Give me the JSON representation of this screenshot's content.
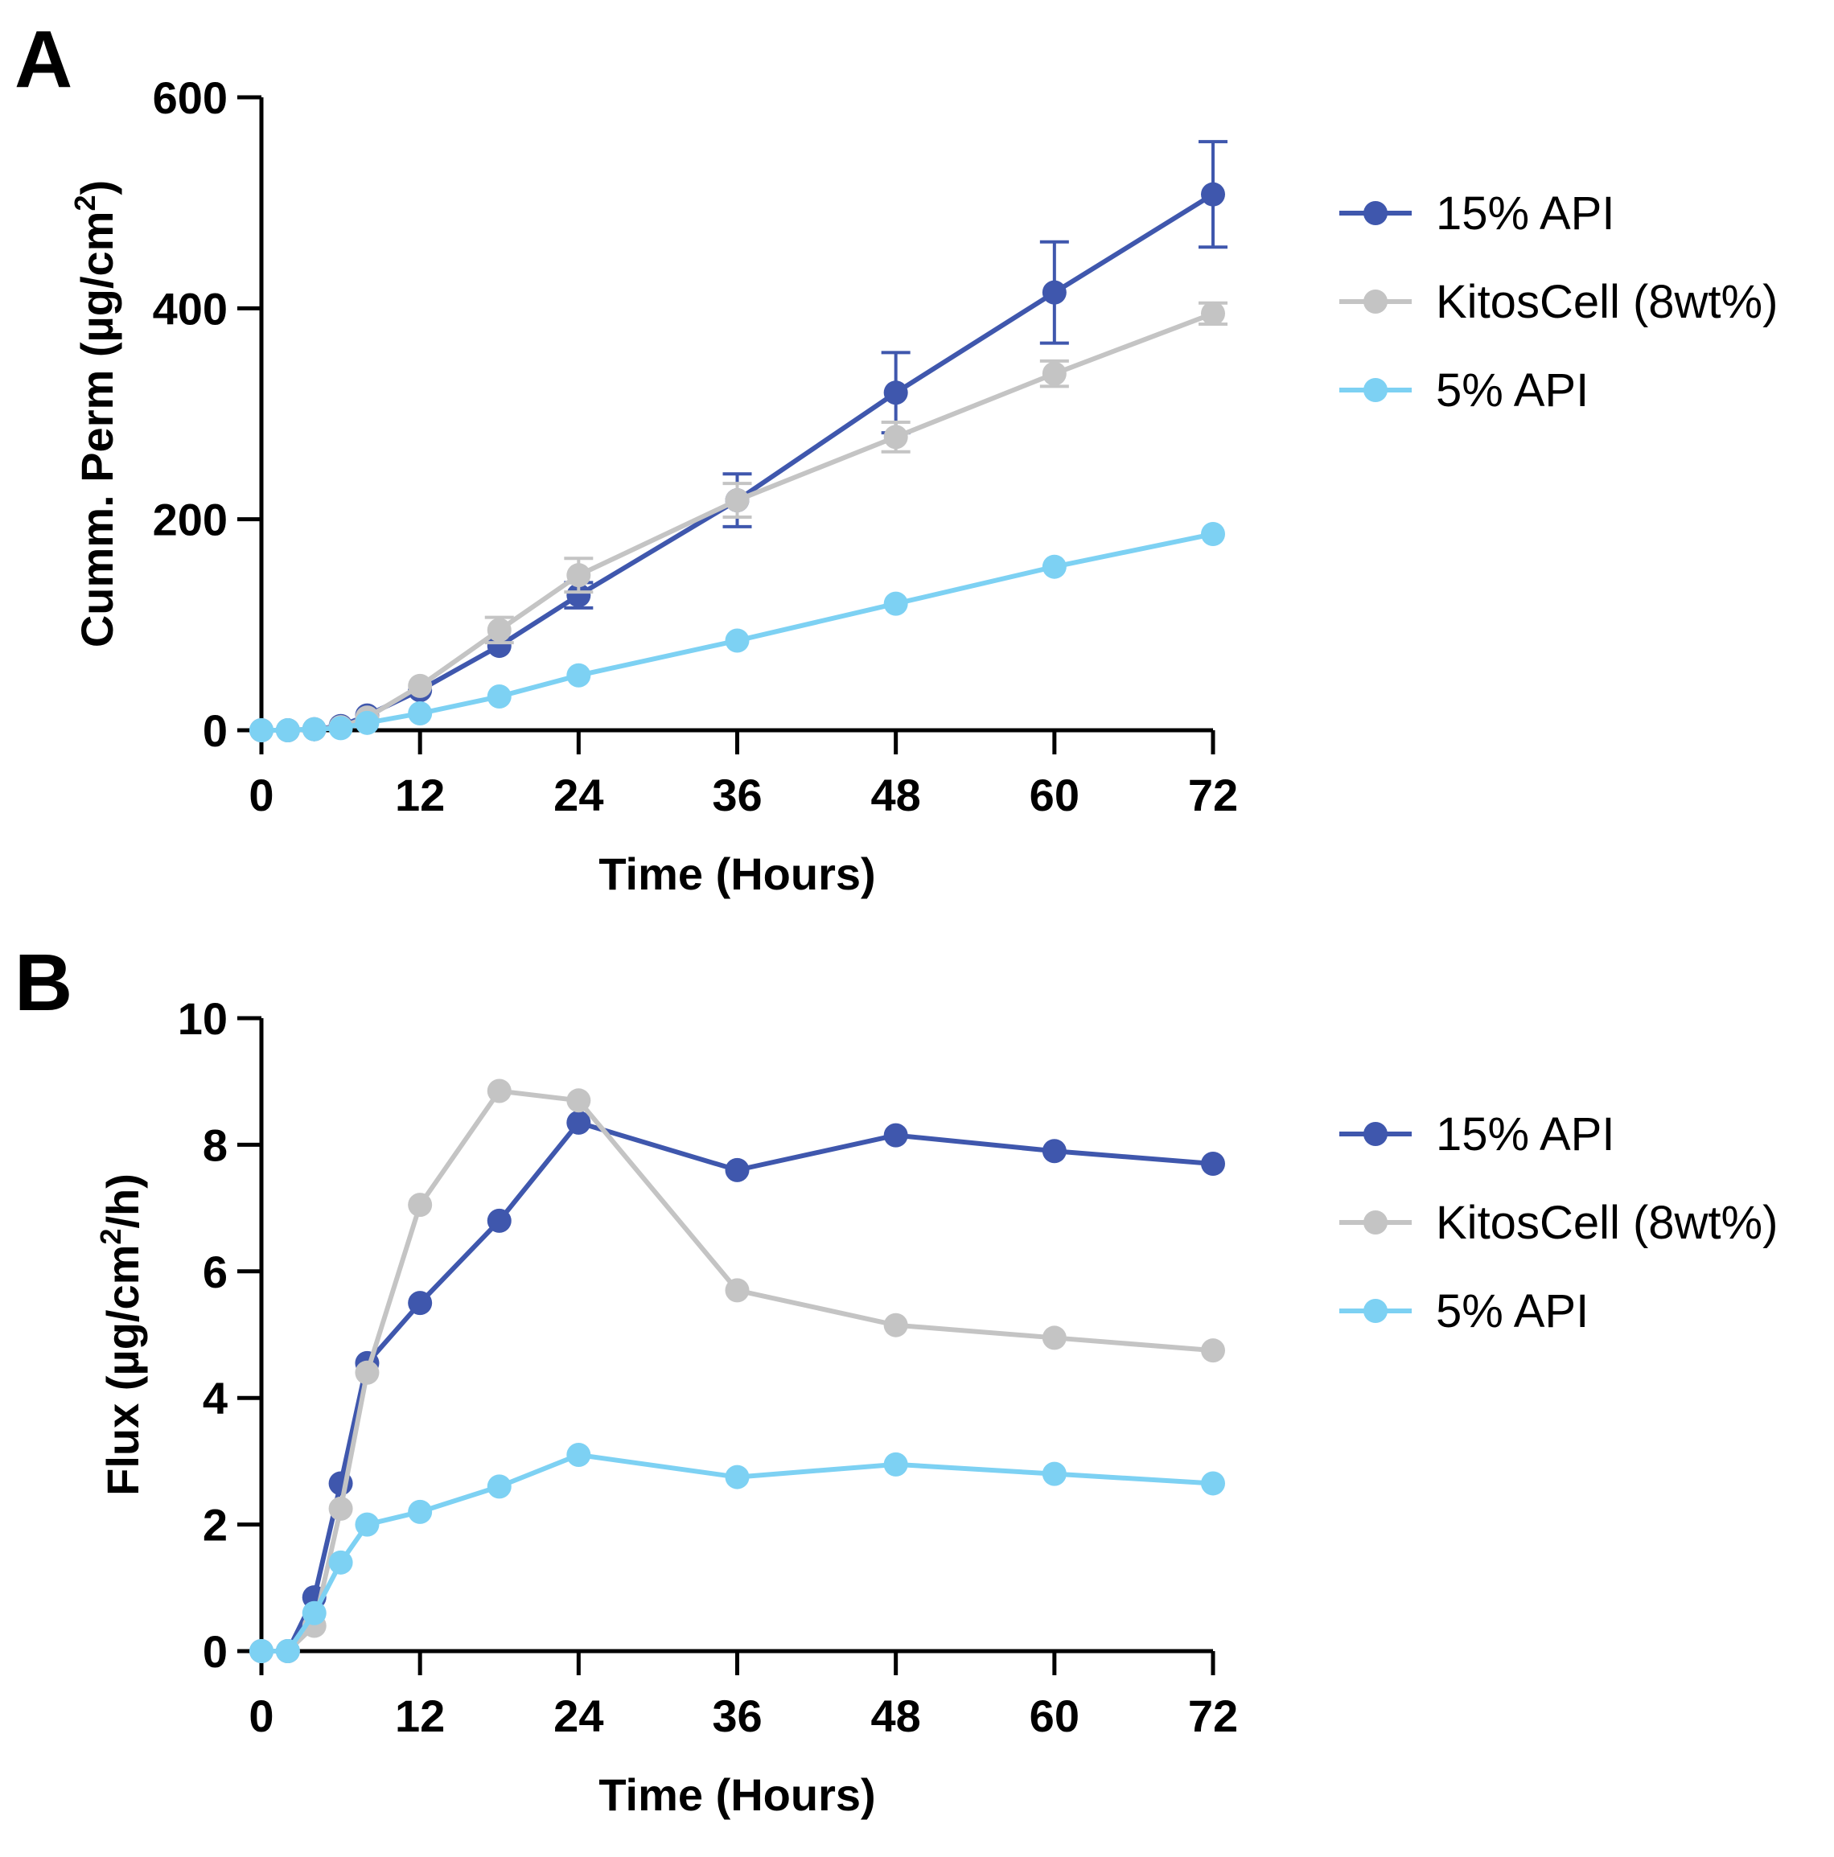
{
  "chart_data": [
    {
      "panel": "A",
      "type": "line",
      "xlabel": "Time (Hours)",
      "ylabel_prefix": "Cumm. Perm (µg/cm",
      "ylabel_sup": "2",
      "ylabel_suffix": ")",
      "xlim": [
        0,
        72
      ],
      "ylim": [
        0,
        600
      ],
      "xticks": [
        "0",
        "12",
        "24",
        "36",
        "48",
        "60",
        "72"
      ],
      "yticks": [
        "0",
        "200",
        "400",
        "600"
      ],
      "xtick_values": [
        0,
        12,
        24,
        36,
        48,
        60,
        72
      ],
      "ytick_values": [
        0,
        200,
        400,
        600
      ],
      "grid": false,
      "legend_position": "right",
      "series": [
        {
          "name": "15% API",
          "color": "#3F57AD",
          "x": [
            0,
            2,
            4,
            6,
            8,
            12,
            18,
            24,
            36,
            48,
            60,
            72
          ],
          "y": [
            0,
            0,
            1,
            4,
            14,
            38,
            80,
            128,
            218,
            320,
            415,
            508
          ],
          "err": [
            0,
            0,
            0,
            0,
            0,
            0,
            0,
            12,
            25,
            38,
            48,
            50
          ]
        },
        {
          "name": "KitosCell (8wt%)",
          "color": "#C4C4C4",
          "x": [
            0,
            2,
            4,
            6,
            8,
            12,
            18,
            24,
            36,
            48,
            60,
            72
          ],
          "y": [
            0,
            0,
            1,
            3,
            12,
            42,
            95,
            147,
            218,
            278,
            338,
            395
          ],
          "err": [
            0,
            0,
            0,
            0,
            0,
            0,
            12,
            16,
            16,
            14,
            12,
            10
          ]
        },
        {
          "name": "5% API",
          "color": "#7DD1F3",
          "x": [
            0,
            2,
            4,
            6,
            8,
            12,
            18,
            24,
            36,
            48,
            60,
            72
          ],
          "y": [
            0,
            0,
            1,
            2,
            7,
            16,
            32,
            52,
            85,
            120,
            155,
            186
          ],
          "err": [
            0,
            0,
            0,
            0,
            0,
            0,
            0,
            0,
            0,
            0,
            0,
            0
          ]
        }
      ]
    },
    {
      "panel": "B",
      "type": "line",
      "xlabel": "Time (Hours)",
      "ylabel_prefix": "Flux (µg/cm",
      "ylabel_sup": "2",
      "ylabel_suffix": "/h)",
      "xlim": [
        0,
        72
      ],
      "ylim": [
        0,
        10
      ],
      "xticks": [
        "0",
        "12",
        "24",
        "36",
        "48",
        "60",
        "72"
      ],
      "yticks": [
        "0",
        "2",
        "4",
        "6",
        "8",
        "10"
      ],
      "xtick_values": [
        0,
        12,
        24,
        36,
        48,
        60,
        72
      ],
      "ytick_values": [
        0,
        2,
        4,
        6,
        8,
        10
      ],
      "grid": false,
      "legend_position": "right",
      "series": [
        {
          "name": "15% API",
          "color": "#3F57AD",
          "x": [
            0,
            2,
            4,
            6,
            8,
            12,
            18,
            24,
            36,
            48,
            60,
            72
          ],
          "y": [
            0,
            0,
            0.85,
            2.65,
            4.55,
            5.5,
            6.8,
            8.35,
            7.6,
            8.15,
            7.9,
            7.7
          ]
        },
        {
          "name": "KitosCell (8wt%)",
          "color": "#C4C4C4",
          "x": [
            0,
            2,
            4,
            6,
            8,
            12,
            18,
            24,
            36,
            48,
            60,
            72
          ],
          "y": [
            0,
            0,
            0.4,
            2.25,
            4.4,
            7.05,
            8.85,
            8.7,
            5.7,
            5.15,
            4.95,
            4.75
          ]
        },
        {
          "name": "5% API",
          "color": "#7DD1F3",
          "x": [
            0,
            2,
            4,
            6,
            8,
            12,
            18,
            24,
            36,
            48,
            60,
            72
          ],
          "y": [
            0,
            0,
            0.6,
            1.4,
            2.0,
            2.2,
            2.6,
            3.1,
            2.75,
            2.95,
            2.8,
            2.65
          ]
        }
      ]
    }
  ]
}
